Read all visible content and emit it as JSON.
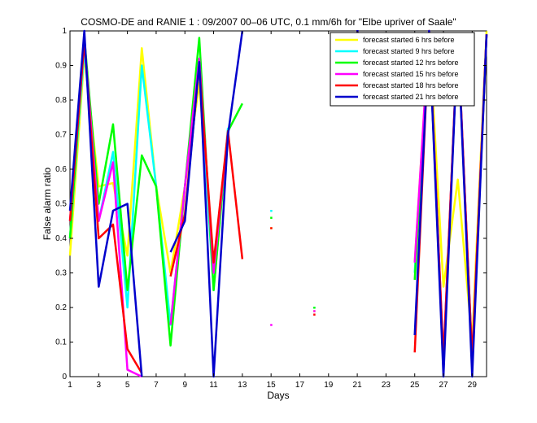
{
  "chart_data": {
    "type": "line",
    "title": "COSMO-DE and RANIE 1 : 09/2007 00–06 UTC, 0.1 mm/6h for \"Elbe upriver of Saale\"",
    "xlabel": "Days",
    "ylabel": "False alarm ratio",
    "xlim": [
      1,
      30
    ],
    "ylim": [
      0,
      1
    ],
    "xticks": [
      "1",
      "3",
      "5",
      "7",
      "9",
      "11",
      "13",
      "15",
      "17",
      "19",
      "21",
      "23",
      "25",
      "27",
      "29"
    ],
    "yticks": [
      "0",
      "0.1",
      "0.2",
      "0.3",
      "0.4",
      "0.5",
      "0.6",
      "0.7",
      "0.8",
      "0.9",
      "1"
    ],
    "legend_position": "top-right",
    "series": [
      {
        "name": "forecast started 6 hrs before",
        "color": "#ffff00",
        "x": [
          1,
          2,
          3,
          4,
          5,
          6,
          7,
          8,
          9,
          10,
          11,
          12,
          13,
          14,
          15,
          16,
          17,
          18,
          19,
          20,
          21,
          22,
          23,
          24,
          25,
          26,
          27,
          28,
          29,
          30
        ],
        "y": [
          0.35,
          0.93,
          0.55,
          0.56,
          0.35,
          0.95,
          0.55,
          0.3,
          0.55,
          0.85,
          0.3,
          0.7,
          null,
          null,
          0.43,
          null,
          null,
          0.19,
          null,
          null,
          1.0,
          null,
          null,
          null,
          0.33,
          1.0,
          0.26,
          0.57,
          0.1,
          1.0
        ]
      },
      {
        "name": "forecast started 9 hrs before",
        "color": "#00ffff",
        "x": [
          1,
          2,
          3,
          4,
          5,
          6,
          7,
          8,
          9,
          10,
          11,
          12,
          13,
          14,
          15,
          16,
          17,
          18,
          19,
          20,
          21,
          22,
          23,
          24,
          25,
          26,
          27,
          28,
          29,
          30
        ],
        "y": [
          0.4,
          0.95,
          0.45,
          0.65,
          0.2,
          0.9,
          0.55,
          0.15,
          0.55,
          0.9,
          0.25,
          0.72,
          null,
          null,
          0.48,
          null,
          null,
          0.2,
          null,
          null,
          1.0,
          null,
          null,
          null,
          0.3,
          1.0,
          0.05,
          0.99,
          0.05,
          0.99
        ]
      },
      {
        "name": "forecast started 12 hrs before",
        "color": "#00ff00",
        "x": [
          1,
          2,
          3,
          4,
          5,
          6,
          7,
          8,
          9,
          10,
          11,
          12,
          13,
          14,
          15,
          16,
          17,
          18,
          19,
          20,
          21,
          22,
          23,
          24,
          25,
          26,
          27,
          28,
          29,
          30
        ],
        "y": [
          0.4,
          0.98,
          0.5,
          0.73,
          0.25,
          0.64,
          0.55,
          0.09,
          0.55,
          0.98,
          0.25,
          0.71,
          0.79,
          null,
          0.46,
          null,
          null,
          0.2,
          null,
          null,
          1.0,
          null,
          null,
          null,
          0.28,
          1.0,
          0.03,
          0.99,
          0.03,
          0.99
        ]
      },
      {
        "name": "forecast started 15 hrs before",
        "color": "#ff00ff",
        "x": [
          1,
          2,
          3,
          4,
          5,
          6,
          7,
          8,
          9,
          10,
          11,
          12,
          13,
          14,
          15,
          16,
          17,
          18,
          19,
          20,
          21,
          22,
          23,
          24,
          25,
          26,
          27,
          28,
          29,
          30
        ],
        "y": [
          0.45,
          0.97,
          0.45,
          0.62,
          0.02,
          0.0,
          null,
          0.15,
          0.55,
          0.92,
          0.3,
          0.71,
          null,
          null,
          0.15,
          null,
          null,
          0.19,
          null,
          null,
          1.0,
          null,
          null,
          null,
          0.33,
          1.0,
          0.05,
          0.99,
          0.05,
          0.99
        ]
      },
      {
        "name": "forecast started 18 hrs before",
        "color": "#ff0000",
        "x": [
          1,
          2,
          3,
          4,
          5,
          6,
          7,
          8,
          9,
          10,
          11,
          12,
          13,
          14,
          15,
          16,
          17,
          18,
          19,
          20,
          21,
          22,
          23,
          24,
          25,
          26,
          27,
          28,
          29,
          30
        ],
        "y": [
          0.45,
          0.97,
          0.4,
          0.44,
          0.08,
          0.01,
          null,
          0.29,
          0.47,
          0.9,
          0.33,
          0.71,
          0.34,
          null,
          0.43,
          null,
          null,
          0.18,
          null,
          null,
          1.0,
          null,
          null,
          null,
          0.07,
          1.0,
          0.05,
          0.99,
          0.05,
          0.99
        ]
      },
      {
        "name": "forecast started 21 hrs before",
        "color": "#0000cc",
        "x": [
          1,
          2,
          3,
          4,
          5,
          6,
          7,
          8,
          9,
          10,
          11,
          12,
          13,
          14,
          15,
          16,
          17,
          18,
          19,
          20,
          21,
          22,
          23,
          24,
          25,
          26,
          27,
          28,
          29,
          30
        ],
        "y": [
          0.48,
          1.0,
          0.26,
          0.48,
          0.5,
          0.0,
          null,
          0.36,
          0.45,
          0.91,
          0.0,
          0.7,
          1.0,
          null,
          null,
          null,
          null,
          null,
          null,
          null,
          1.0,
          null,
          null,
          null,
          0.12,
          1.0,
          0.0,
          0.99,
          0.0,
          0.99
        ]
      }
    ]
  }
}
